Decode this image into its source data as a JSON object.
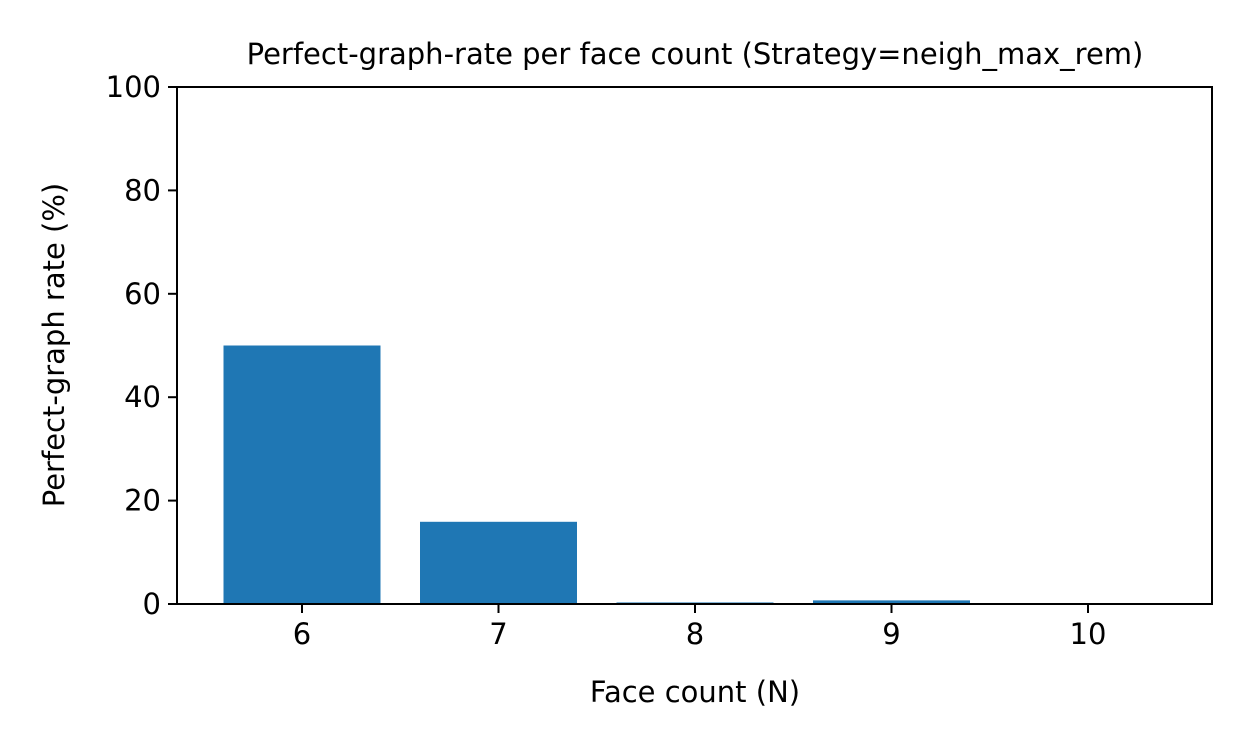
{
  "chart_data": {
    "type": "bar",
    "title": "Perfect-graph-rate per face count (Strategy=neigh_max_rem)",
    "xlabel": "Face count (N)",
    "ylabel": "Perfect-graph rate (%)",
    "categories": [
      "6",
      "7",
      "8",
      "9",
      "10"
    ],
    "values": [
      50.0,
      15.9,
      0.3,
      0.7,
      0.0
    ],
    "ylim": [
      0,
      100
    ],
    "yticks": [
      0,
      20,
      40,
      60,
      80,
      100
    ],
    "grid": false,
    "legend": "none",
    "bar_color": "#1f77b4"
  }
}
